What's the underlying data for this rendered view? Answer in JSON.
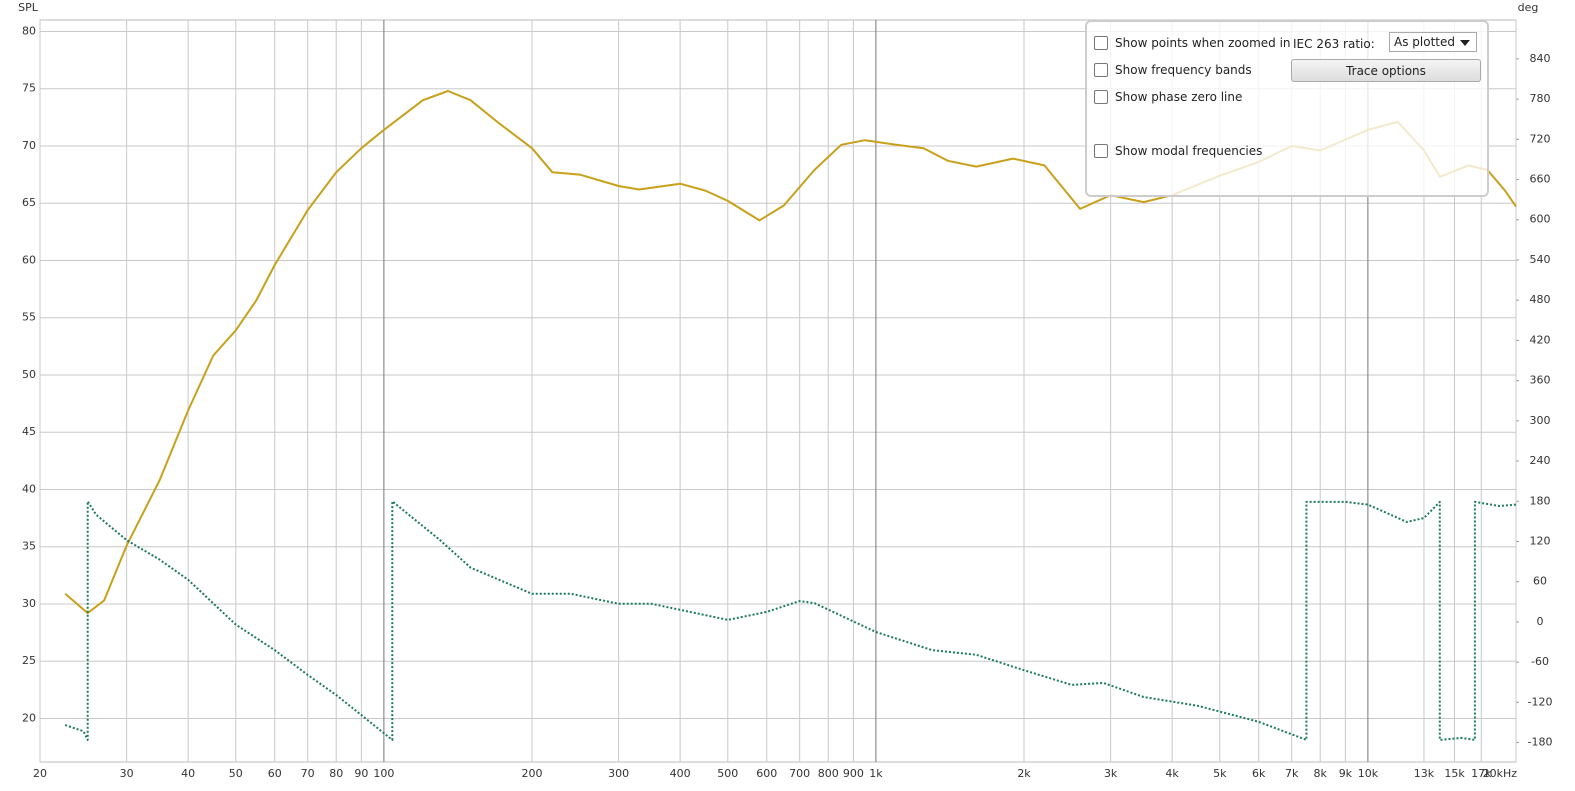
{
  "chart_data": {
    "type": "line",
    "xscale": "log",
    "grid": true,
    "ylabel": "SPL",
    "y2label": "deg",
    "xlim": [
      20,
      20000
    ],
    "ylim": [
      16.2,
      81
    ],
    "y2lim": [
      -209,
      898
    ],
    "xticks": [
      20,
      30,
      40,
      50,
      60,
      70,
      80,
      90,
      100,
      200,
      300,
      400,
      500,
      600,
      700,
      800,
      900,
      {
        "value": 1000,
        "label": "1k"
      },
      {
        "value": 2000,
        "label": "2k"
      },
      {
        "value": 3000,
        "label": "3k"
      },
      {
        "value": 4000,
        "label": "4k"
      },
      {
        "value": 5000,
        "label": "5k"
      },
      {
        "value": 6000,
        "label": "6k"
      },
      {
        "value": 7000,
        "label": "7k"
      },
      {
        "value": 8000,
        "label": "8k"
      },
      {
        "value": 9000,
        "label": "9k"
      },
      {
        "value": 10000,
        "label": "10k"
      },
      {
        "value": 13000,
        "label": "13k"
      },
      {
        "value": 15000,
        "label": "15k"
      },
      {
        "value": 17000,
        "label": "17k"
      },
      {
        "value": 20000,
        "label": "20kHz"
      }
    ],
    "yticks": [
      20,
      25,
      30,
      35,
      40,
      45,
      50,
      55,
      60,
      65,
      70,
      75,
      80
    ],
    "y2ticks": [
      -180,
      -120,
      -60,
      0,
      60,
      120,
      180,
      240,
      300,
      360,
      420,
      480,
      540,
      600,
      660,
      720,
      780,
      840
    ],
    "series": [
      {
        "color": "#c8a01a",
        "style": "solid",
        "x": [
          22.5,
          25,
          27,
          30,
          35,
          40,
          45,
          50,
          55,
          60,
          70,
          80,
          90,
          100,
          120,
          135,
          150,
          170,
          200,
          220,
          250,
          300,
          330,
          400,
          450,
          500,
          580,
          650,
          750,
          850,
          950,
          1100,
          1250,
          1400,
          1600,
          1900,
          2200,
          2600,
          3000,
          3500,
          4000,
          5000,
          6000,
          7000,
          8000,
          10000,
          11500,
          13000,
          14000,
          16000,
          17500,
          19000,
          20000
        ],
        "values": [
          30.9,
          29.2,
          30.3,
          35.1,
          40.8,
          46.9,
          51.7,
          53.9,
          56.5,
          59.6,
          64.4,
          67.7,
          69.8,
          71.4,
          74.0,
          74.8,
          74.0,
          72.1,
          69.8,
          67.7,
          67.5,
          66.5,
          66.2,
          66.7,
          66.1,
          65.2,
          63.5,
          64.8,
          67.9,
          70.1,
          70.5,
          70.1,
          69.8,
          68.7,
          68.2,
          68.9,
          68.3,
          64.5,
          65.7,
          65.1,
          65.7,
          67.4,
          68.6,
          70.0,
          69.6,
          71.4,
          72.1,
          69.6,
          67.3,
          68.3,
          67.9,
          66.1,
          64.7
        ]
      },
      {
        "color": "#1a7a60",
        "style": "dotted",
        "axis": "y2",
        "x": [
          22.5,
          24.5,
          25,
          25,
          26,
          30,
          35,
          40,
          50,
          60,
          70,
          80,
          90,
          104,
          104,
          130,
          150,
          200,
          240,
          300,
          350,
          500,
          600,
          700,
          750,
          1000,
          1300,
          1600,
          2000,
          2500,
          2900,
          3500,
          4500,
          6000,
          7500,
          7500,
          9000,
          10000,
          12000,
          13000,
          14000,
          14000,
          15500,
          16500,
          16500,
          18500,
          20000
        ],
        "values": [
          -154,
          -163,
          -176,
          180,
          160,
          122,
          93,
          63,
          -4,
          -42,
          -79,
          -109,
          -139,
          -176,
          180,
          122,
          81,
          42,
          42,
          27,
          27,
          3,
          15,
          31,
          28,
          -15,
          -42,
          -49,
          -72,
          -94,
          -91,
          -112,
          -125,
          -149,
          -176,
          179,
          179,
          175,
          149,
          155,
          179,
          -176,
          -173,
          -176,
          179,
          173,
          175
        ]
      }
    ]
  },
  "options_panel": {
    "checkboxes": [
      "Show points when zoomed in",
      "Show frequency bands",
      "Show phase zero line",
      "Show modal frequencies"
    ],
    "ratio_label": "IEC 263 ratio:",
    "ratio_value": "As plotted",
    "button": "Trace options"
  }
}
